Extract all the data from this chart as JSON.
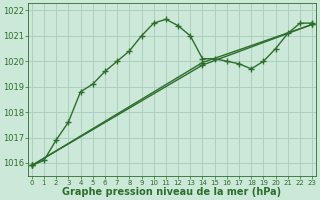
{
  "title": "",
  "xlabel": "Graphe pression niveau de la mer (hPa)",
  "bg_color": "#cce8d8",
  "grid_color": "#aaccbb",
  "line_color": "#2d6e2d",
  "ylim": [
    1015.5,
    1022.3
  ],
  "xlim": [
    -0.3,
    23.3
  ],
  "yticks": [
    1016,
    1017,
    1018,
    1019,
    1020,
    1021,
    1022
  ],
  "xticks": [
    0,
    1,
    2,
    3,
    4,
    5,
    6,
    7,
    8,
    9,
    10,
    11,
    12,
    13,
    14,
    15,
    16,
    17,
    18,
    19,
    20,
    21,
    22,
    23
  ],
  "line1_x": [
    0,
    1,
    2,
    3,
    4,
    5,
    6,
    7,
    8,
    9,
    10,
    11,
    12,
    13,
    14,
    15,
    16,
    17,
    18,
    19,
    20,
    21,
    22,
    23
  ],
  "line1_y": [
    1015.9,
    1016.1,
    1016.9,
    1017.6,
    1018.8,
    1019.1,
    1019.6,
    1020.0,
    1020.4,
    1021.0,
    1021.5,
    1021.65,
    1021.4,
    1021.0,
    1020.1,
    1020.1,
    1020.0,
    1019.9,
    1019.7,
    1020.0,
    1020.5,
    1021.1,
    1021.5,
    1021.5
  ],
  "line2_x": [
    0,
    14,
    23
  ],
  "line2_y": [
    1015.9,
    1019.85,
    1021.45
  ],
  "line3_x": [
    0,
    14,
    23
  ],
  "line3_y": [
    1015.9,
    1019.95,
    1021.45
  ],
  "marker": "+",
  "markersize": 4,
  "linewidth": 1.0,
  "xlabel_fontsize": 7,
  "tick_fontsize": 6,
  "fig_width": 3.2,
  "fig_height": 2.0,
  "dpi": 100
}
